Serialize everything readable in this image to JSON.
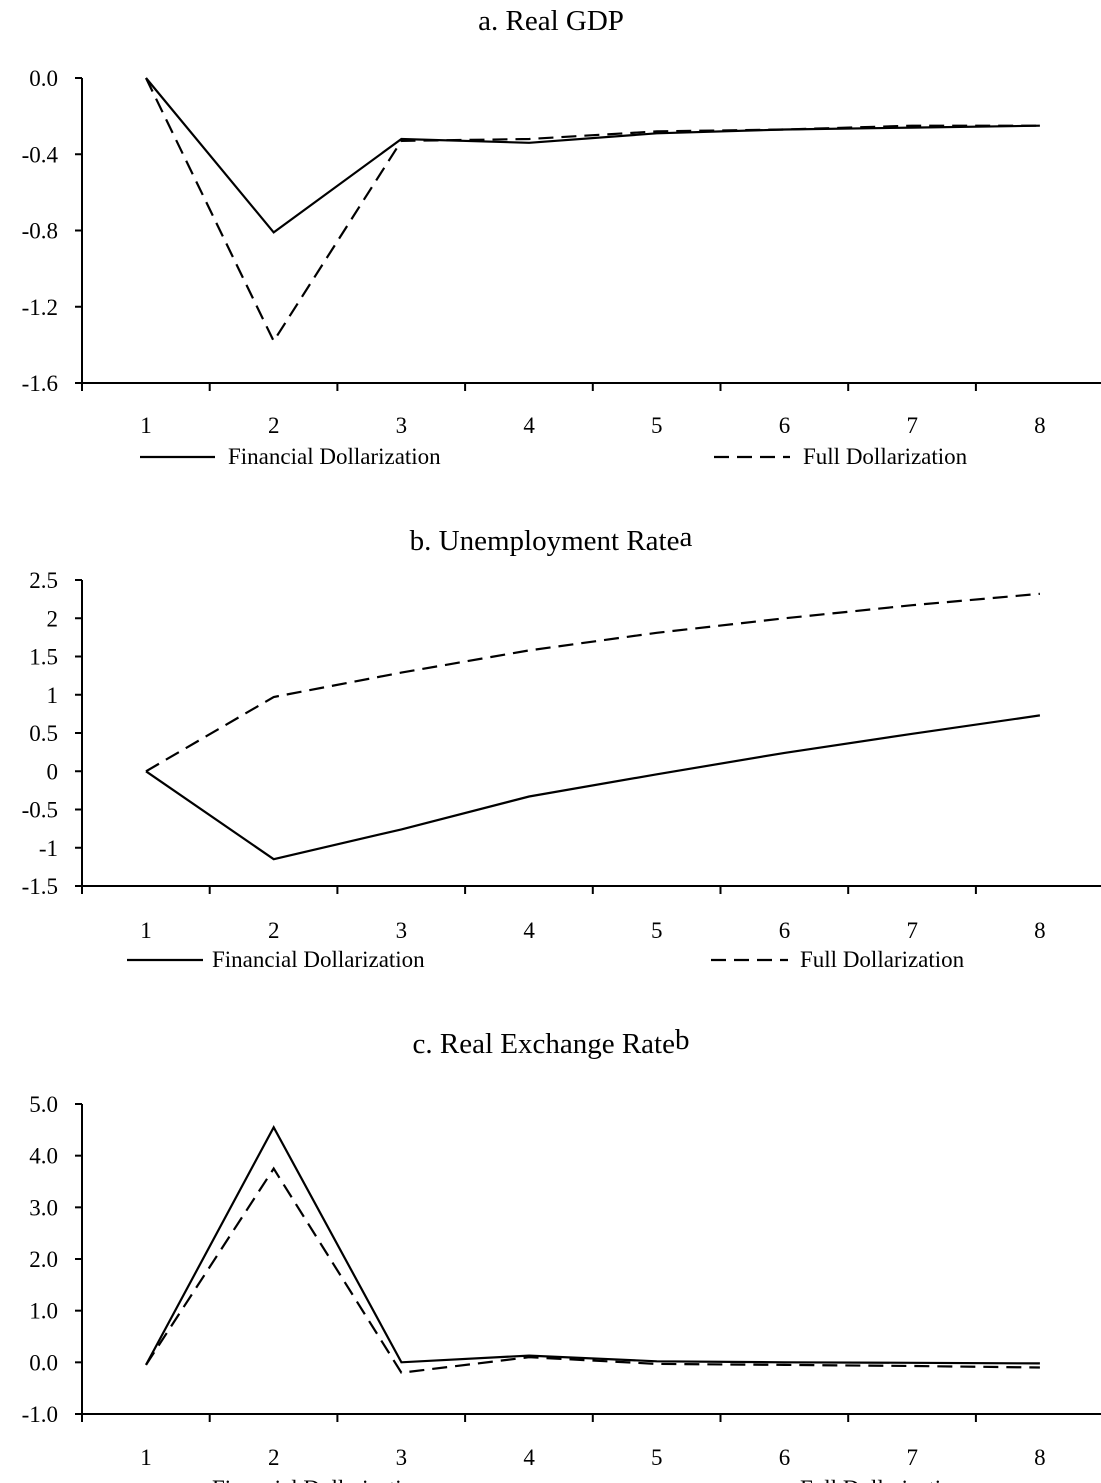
{
  "chart_data": [
    {
      "type": "line",
      "title": "a. Real GDP",
      "title_superscript": "",
      "x": [
        1,
        2,
        3,
        4,
        5,
        6,
        7,
        8
      ],
      "x_tick_labels": [
        "1",
        "2",
        "3",
        "4",
        "5",
        "6",
        "7",
        "8"
      ],
      "y_tick_labels": [
        "0.0",
        "-0.4",
        "-0.8",
        "-1.2",
        "-1.6"
      ],
      "y_tick_values": [
        0.0,
        -0.4,
        -0.8,
        -1.2,
        -1.6
      ],
      "ylim": [
        -1.6,
        0.0
      ],
      "grid": false,
      "legend_position": "bottom",
      "series": [
        {
          "name": "Financial Dollarization",
          "style": "solid",
          "values": [
            0.0,
            -0.81,
            -0.32,
            -0.34,
            -0.29,
            -0.27,
            -0.26,
            -0.25
          ]
        },
        {
          "name": "Full Dollarization",
          "style": "dashed",
          "values": [
            0.0,
            -1.38,
            -0.33,
            -0.32,
            -0.28,
            -0.27,
            -0.25,
            -0.25
          ]
        }
      ]
    },
    {
      "type": "line",
      "title": "b. Unemployment Rate",
      "title_superscript": "a",
      "x": [
        1,
        2,
        3,
        4,
        5,
        6,
        7,
        8
      ],
      "x_tick_labels": [
        "1",
        "2",
        "3",
        "4",
        "5",
        "6",
        "7",
        "8"
      ],
      "y_tick_labels": [
        "2.5",
        "2",
        "1.5",
        "1",
        "0.5",
        "0",
        "-0.5",
        "-1",
        "-1.5"
      ],
      "y_tick_values": [
        2.5,
        2,
        1.5,
        1,
        0.5,
        0,
        -0.5,
        -1,
        -1.5
      ],
      "ylim": [
        -1.5,
        2.5
      ],
      "grid": false,
      "legend_position": "bottom",
      "series": [
        {
          "name": "Financial Dollarization",
          "style": "solid",
          "values": [
            0.0,
            -1.15,
            -0.76,
            -0.33,
            -0.04,
            0.24,
            0.49,
            0.73
          ]
        },
        {
          "name": "Full Dollarization",
          "style": "dashed",
          "values": [
            0.0,
            0.97,
            1.29,
            1.58,
            1.81,
            2.0,
            2.17,
            2.32
          ]
        }
      ]
    },
    {
      "type": "line",
      "title": "c. Real Exchange Rate",
      "title_superscript": "b",
      "x": [
        1,
        2,
        3,
        4,
        5,
        6,
        7,
        8
      ],
      "x_tick_labels": [
        "1",
        "2",
        "3",
        "4",
        "5",
        "6",
        "7",
        "8"
      ],
      "y_tick_labels": [
        "5.0",
        "4.0",
        "3.0",
        "2.0",
        "1.0",
        "0.0",
        "-1.0"
      ],
      "y_tick_values": [
        5.0,
        4.0,
        3.0,
        2.0,
        1.0,
        0.0,
        -1.0
      ],
      "ylim": [
        -1.0,
        5.0
      ],
      "grid": false,
      "legend_position": "bottom",
      "series": [
        {
          "name": "Financial Dollarization",
          "style": "solid",
          "values": [
            -0.05,
            4.55,
            0.0,
            0.13,
            0.02,
            0.0,
            -0.01,
            -0.02
          ]
        },
        {
          "name": "Full Dollarization",
          "style": "dashed",
          "values": [
            -0.05,
            3.75,
            -0.2,
            0.1,
            -0.03,
            -0.05,
            -0.07,
            -0.1
          ]
        }
      ]
    }
  ]
}
